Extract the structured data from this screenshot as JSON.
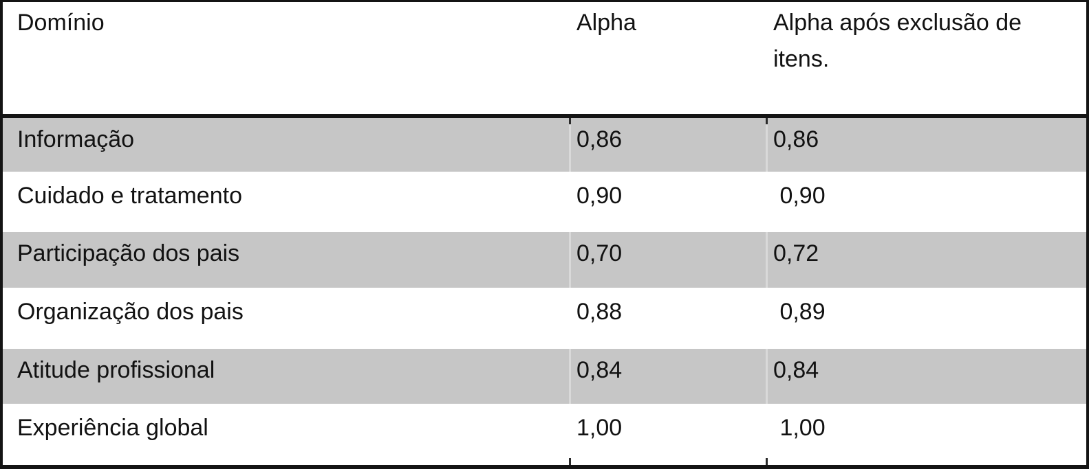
{
  "table": {
    "header": {
      "domain": "Domínio",
      "alpha": "Alpha",
      "alpha_after_exclusion": "Alpha após exclusão de itens."
    },
    "rows": [
      {
        "domain": "Informação",
        "alpha": "0,86",
        "alpha_after_exclusion": "0,86"
      },
      {
        "domain": "Cuidado e tratamento",
        "alpha": "0,90",
        "alpha_after_exclusion": " 0,90"
      },
      {
        "domain": "Participação dos pais",
        "alpha": "0,70",
        "alpha_after_exclusion": "0,72"
      },
      {
        "domain": "Organização dos pais",
        "alpha": "0,88",
        "alpha_after_exclusion": " 0,89"
      },
      {
        "domain": "Atitude profissional",
        "alpha": "0,84",
        "alpha_after_exclusion": "0,84"
      },
      {
        "domain": "Experiência global",
        "alpha": "1,00",
        "alpha_after_exclusion": " 1,00"
      }
    ],
    "colors": {
      "row_shading": "#c6c6c6",
      "border": "#141414",
      "text": "#121212"
    }
  }
}
